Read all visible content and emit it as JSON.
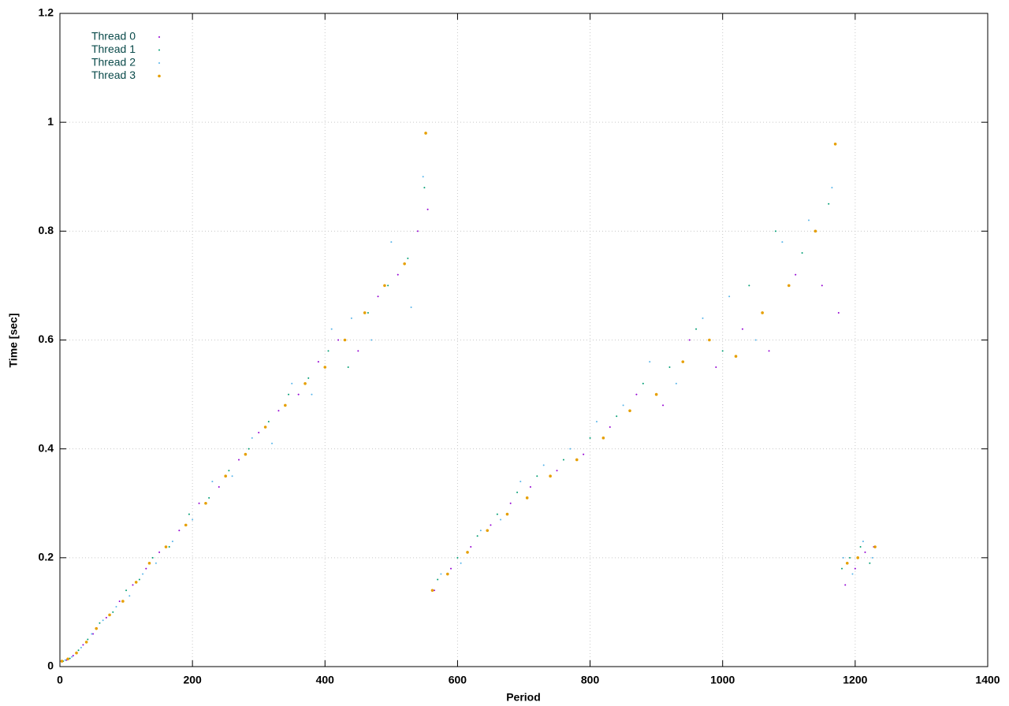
{
  "chart_data": {
    "type": "scatter",
    "xlabel": "Period",
    "ylabel": "Time [sec]",
    "xlim": [
      0,
      1400
    ],
    "ylim": [
      0,
      1.2
    ],
    "xticks": [
      0,
      200,
      400,
      600,
      800,
      1000,
      1200,
      1400
    ],
    "yticks": [
      0,
      0.2,
      0.4,
      0.6,
      0.8,
      1,
      1.2
    ],
    "grid": true,
    "legend": "top-left",
    "series": [
      {
        "name": "Thread 0",
        "color": "#9400d3",
        "x": [
          2,
          10,
          20,
          35,
          50,
          70,
          90,
          110,
          130,
          150,
          180,
          210,
          240,
          270,
          300,
          330,
          360,
          390,
          420,
          450,
          480,
          510,
          540,
          555,
          565,
          590,
          620,
          650,
          680,
          710,
          750,
          790,
          830,
          870,
          910,
          950,
          990,
          1030,
          1070,
          1110,
          1150,
          1175,
          1185,
          1200,
          1215,
          1228
        ],
        "values": [
          0.01,
          0.012,
          0.02,
          0.04,
          0.06,
          0.09,
          0.12,
          0.15,
          0.18,
          0.21,
          0.25,
          0.3,
          0.33,
          0.38,
          0.43,
          0.47,
          0.5,
          0.56,
          0.6,
          0.58,
          0.68,
          0.72,
          0.8,
          0.84,
          0.14,
          0.18,
          0.22,
          0.26,
          0.3,
          0.33,
          0.36,
          0.39,
          0.44,
          0.5,
          0.48,
          0.6,
          0.55,
          0.62,
          0.58,
          0.72,
          0.7,
          0.65,
          0.15,
          0.18,
          0.21,
          0.22
        ]
      },
      {
        "name": "Thread 1",
        "color": "#009e73",
        "x": [
          5,
          15,
          28,
          42,
          60,
          80,
          100,
          120,
          140,
          165,
          195,
          225,
          255,
          285,
          315,
          345,
          375,
          405,
          435,
          465,
          495,
          525,
          550,
          570,
          600,
          630,
          660,
          690,
          720,
          760,
          800,
          840,
          880,
          920,
          960,
          1000,
          1040,
          1080,
          1120,
          1160,
          1180,
          1192,
          1208,
          1222
        ],
        "values": [
          0.01,
          0.015,
          0.03,
          0.05,
          0.08,
          0.1,
          0.14,
          0.16,
          0.2,
          0.22,
          0.28,
          0.31,
          0.36,
          0.4,
          0.45,
          0.5,
          0.53,
          0.58,
          0.55,
          0.65,
          0.7,
          0.75,
          0.88,
          0.16,
          0.2,
          0.24,
          0.28,
          0.32,
          0.35,
          0.38,
          0.42,
          0.46,
          0.52,
          0.55,
          0.62,
          0.58,
          0.7,
          0.8,
          0.76,
          0.85,
          0.18,
          0.2,
          0.22,
          0.19
        ]
      },
      {
        "name": "Thread 2",
        "color": "#56b4e9",
        "x": [
          8,
          18,
          32,
          48,
          65,
          85,
          105,
          125,
          145,
          170,
          200,
          230,
          260,
          290,
          320,
          350,
          380,
          410,
          440,
          470,
          500,
          530,
          548,
          575,
          605,
          635,
          665,
          695,
          730,
          770,
          810,
          850,
          890,
          930,
          970,
          1010,
          1050,
          1090,
          1130,
          1165,
          1182,
          1196,
          1212,
          1226
        ],
        "values": [
          0.012,
          0.018,
          0.035,
          0.06,
          0.085,
          0.11,
          0.13,
          0.17,
          0.19,
          0.23,
          0.27,
          0.34,
          0.35,
          0.42,
          0.41,
          0.52,
          0.5,
          0.62,
          0.64,
          0.6,
          0.78,
          0.66,
          0.9,
          0.17,
          0.19,
          0.25,
          0.27,
          0.34,
          0.37,
          0.4,
          0.45,
          0.48,
          0.56,
          0.52,
          0.64,
          0.68,
          0.6,
          0.78,
          0.82,
          0.88,
          0.2,
          0.17,
          0.23,
          0.2
        ]
      },
      {
        "name": "Thread 3",
        "color": "#e69f00",
        "x": [
          3,
          12,
          25,
          40,
          55,
          75,
          95,
          115,
          135,
          160,
          190,
          220,
          250,
          280,
          310,
          340,
          370,
          400,
          430,
          460,
          490,
          520,
          552,
          562,
          585,
          615,
          645,
          675,
          705,
          740,
          780,
          820,
          860,
          900,
          940,
          980,
          1020,
          1060,
          1100,
          1140,
          1170,
          1188,
          1204,
          1230
        ],
        "values": [
          0.01,
          0.014,
          0.025,
          0.045,
          0.07,
          0.095,
          0.12,
          0.155,
          0.19,
          0.22,
          0.26,
          0.3,
          0.35,
          0.39,
          0.44,
          0.48,
          0.52,
          0.55,
          0.6,
          0.65,
          0.7,
          0.74,
          0.98,
          0.14,
          0.17,
          0.21,
          0.25,
          0.28,
          0.31,
          0.35,
          0.38,
          0.42,
          0.47,
          0.5,
          0.56,
          0.6,
          0.57,
          0.65,
          0.7,
          0.8,
          0.96,
          0.19,
          0.2,
          0.22
        ]
      }
    ]
  }
}
